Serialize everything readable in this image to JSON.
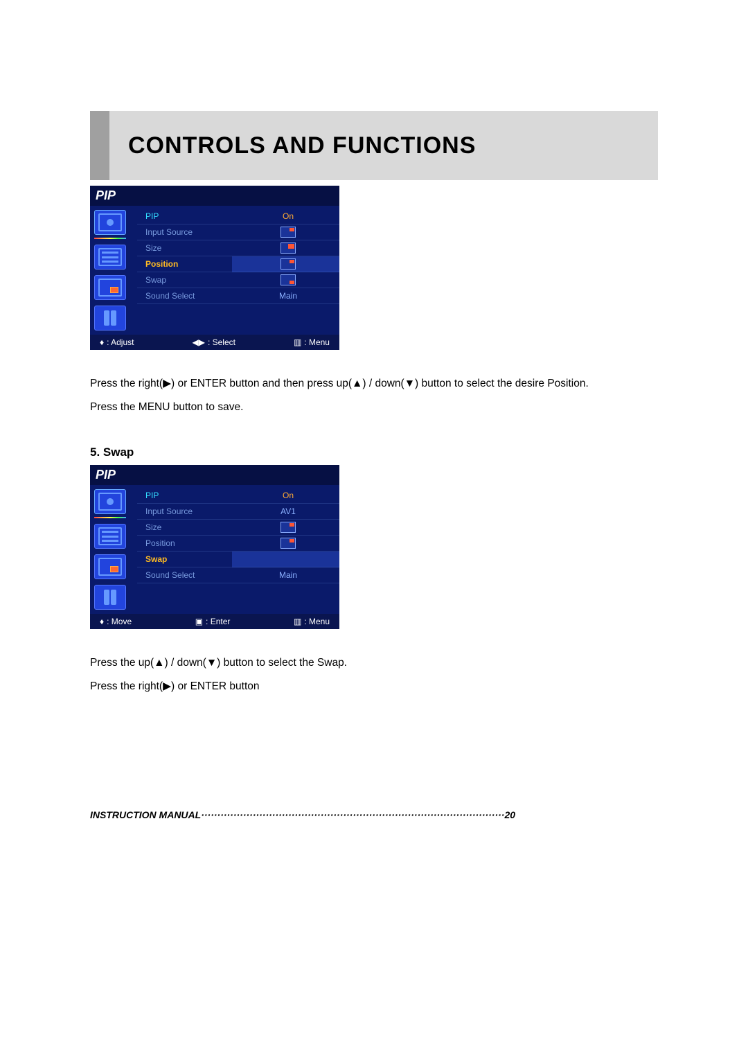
{
  "header": {
    "title": "CONTROLS AND FUNCTIONS"
  },
  "osd1": {
    "title": "PIP",
    "rows": [
      {
        "label": "PIP",
        "value": "On",
        "labelClass": "cyan",
        "valueType": "text"
      },
      {
        "label": "Input Source",
        "value": "",
        "labelClass": "",
        "valueType": "icon",
        "dot": "tr"
      },
      {
        "label": "Size",
        "value": "",
        "labelClass": "",
        "valueType": "icon",
        "dot": "tr-big"
      },
      {
        "label": "Position",
        "value": "",
        "labelClass": "hl",
        "valueType": "icon",
        "dot": "tr",
        "hlval": true
      },
      {
        "label": "Swap",
        "value": "",
        "labelClass": "",
        "valueType": "icon",
        "dot": "br"
      },
      {
        "label": "Sound Select",
        "value": "Main",
        "labelClass": "",
        "valueType": "text"
      }
    ],
    "footer": {
      "left": ": Adjust",
      "mid": ": Select",
      "right": ": Menu"
    }
  },
  "text1a": "Press the right(▶) or ENTER button and then press up(▲) / down(▼) button to select the desire Position.",
  "text1b": "Press the MENU button to save.",
  "section2": {
    "heading": "5. Swap"
  },
  "osd2": {
    "title": "PIP",
    "rows": [
      {
        "label": "PIP",
        "value": "On",
        "labelClass": "cyan",
        "valueType": "text"
      },
      {
        "label": "Input Source",
        "value": "AV1",
        "labelClass": "",
        "valueType": "text"
      },
      {
        "label": "Size",
        "value": "",
        "labelClass": "",
        "valueType": "icon",
        "dot": "tr"
      },
      {
        "label": "Position",
        "value": "",
        "labelClass": "",
        "valueType": "icon",
        "dot": "tr"
      },
      {
        "label": "Swap",
        "value": "",
        "labelClass": "hl",
        "valueType": "none",
        "hlval": true
      },
      {
        "label": "Sound Select",
        "value": "Main",
        "labelClass": "",
        "valueType": "text"
      }
    ],
    "footer": {
      "left": ": Move",
      "mid": ": Enter",
      "right": ": Menu"
    }
  },
  "text2a": "Press the up(▲) / down(▼) button to select the Swap.",
  "text2b": "Press the right(▶) or ENTER button",
  "footer": {
    "label": "INSTRUCTION MANUAL",
    "dots": "······························································································",
    "page": "20"
  },
  "colors": {
    "banner_bg": "#d9d9d9",
    "osd_bg": "#0a1a6a",
    "osd_title_bg": "#061044",
    "highlight": "#ffbb22",
    "cyan": "#33ddff",
    "dim": "#7799dd"
  }
}
